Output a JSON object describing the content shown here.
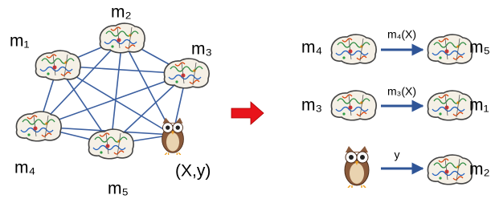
{
  "graph": {
    "nodes": [
      "m₁",
      "m₂",
      "m₃",
      "m₄",
      "m₅"
    ],
    "owl_label": "(X,y)"
  },
  "arrow_rows": [
    {
      "source": "m₄",
      "label": "m₄(X)",
      "target": "m₅"
    },
    {
      "source": "m₃",
      "label": "m₃(X)",
      "target": "m₁"
    },
    {
      "label": "y",
      "target": "m₂"
    }
  ]
}
